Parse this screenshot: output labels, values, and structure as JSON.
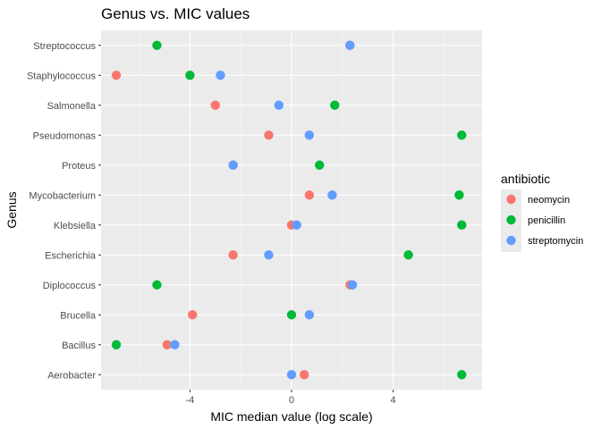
{
  "chart_data": {
    "type": "scatter",
    "title": "Genus vs. MIC values",
    "xlabel": "MIC median value (log scale)",
    "ylabel": "Genus",
    "xlim": [
      -7.5,
      7.5
    ],
    "xticks": [
      -4,
      0,
      4
    ],
    "xtick_labels": [
      "-4",
      "0",
      "4"
    ],
    "categories": [
      "Aerobacter",
      "Bacillus",
      "Brucella",
      "Diplococcus",
      "Escherichia",
      "Klebsiella",
      "Mycobacterium",
      "Proteus",
      "Pseudomonas",
      "Salmonella",
      "Staphylococcus",
      "Streptococcus"
    ],
    "legend": {
      "title": "antibiotic",
      "position": "right"
    },
    "grid": true,
    "series": [
      {
        "name": "neomycin",
        "color": "#F8766D",
        "values": [
          0.5,
          -4.9,
          -3.9,
          2.3,
          -2.3,
          0.0,
          0.7,
          -2.3,
          -0.9,
          -3.0,
          -6.9,
          2.3
        ]
      },
      {
        "name": "penicillin",
        "color": "#00BA38",
        "values": [
          6.7,
          -6.9,
          0.0,
          -5.3,
          4.6,
          6.7,
          6.6,
          1.1,
          6.7,
          1.7,
          -4.0,
          -5.3
        ]
      },
      {
        "name": "streptomycin",
        "color": "#619CFF",
        "values": [
          0.0,
          -4.6,
          0.7,
          2.4,
          -0.9,
          0.2,
          1.6,
          -2.3,
          0.7,
          -0.5,
          -2.8,
          2.3
        ]
      }
    ]
  }
}
